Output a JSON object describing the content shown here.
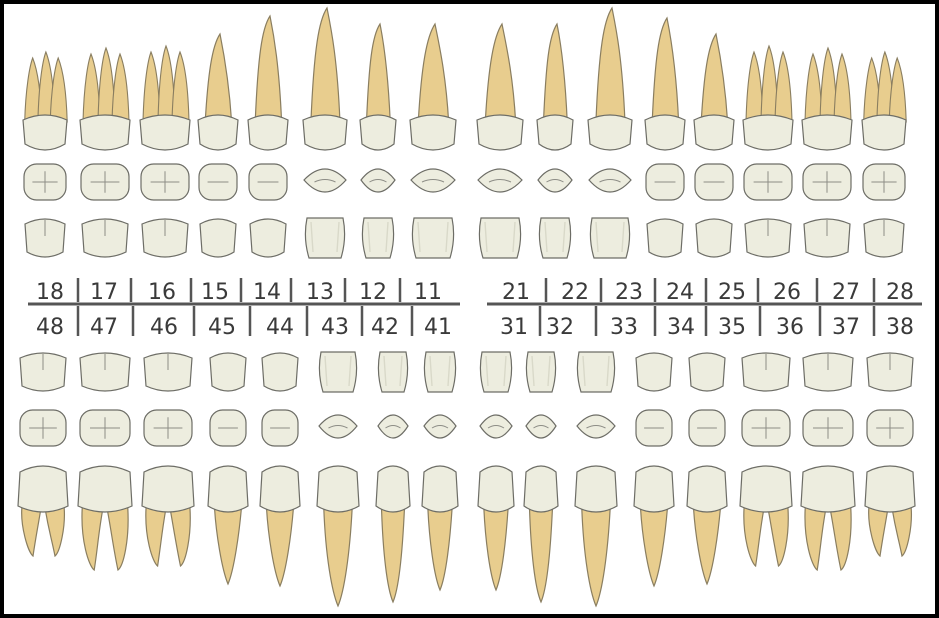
{
  "colors": {
    "root": "#e8cd8e",
    "root_edge": "#8a7e60",
    "crown": "#ededdf",
    "crown_edge": "#6d6d66",
    "crown_shade": "#d9d9c9",
    "fissure": "#8d8d86",
    "line": "#555555",
    "background": "#ffffff",
    "frame": "#000000"
  },
  "chart": {
    "upper": {
      "right": {
        "labels": [
          "18",
          "17",
          "16",
          "15",
          "14",
          "13",
          "12",
          "11"
        ]
      },
      "left": {
        "labels": [
          "21",
          "22",
          "23",
          "24",
          "25",
          "26",
          "27",
          "28"
        ]
      }
    },
    "lower": {
      "right": {
        "labels": [
          "48",
          "47",
          "46",
          "45",
          "44",
          "43",
          "42",
          "41"
        ]
      },
      "left": {
        "labels": [
          "31",
          "32",
          "33",
          "34",
          "35",
          "36",
          "37",
          "38"
        ]
      }
    }
  }
}
